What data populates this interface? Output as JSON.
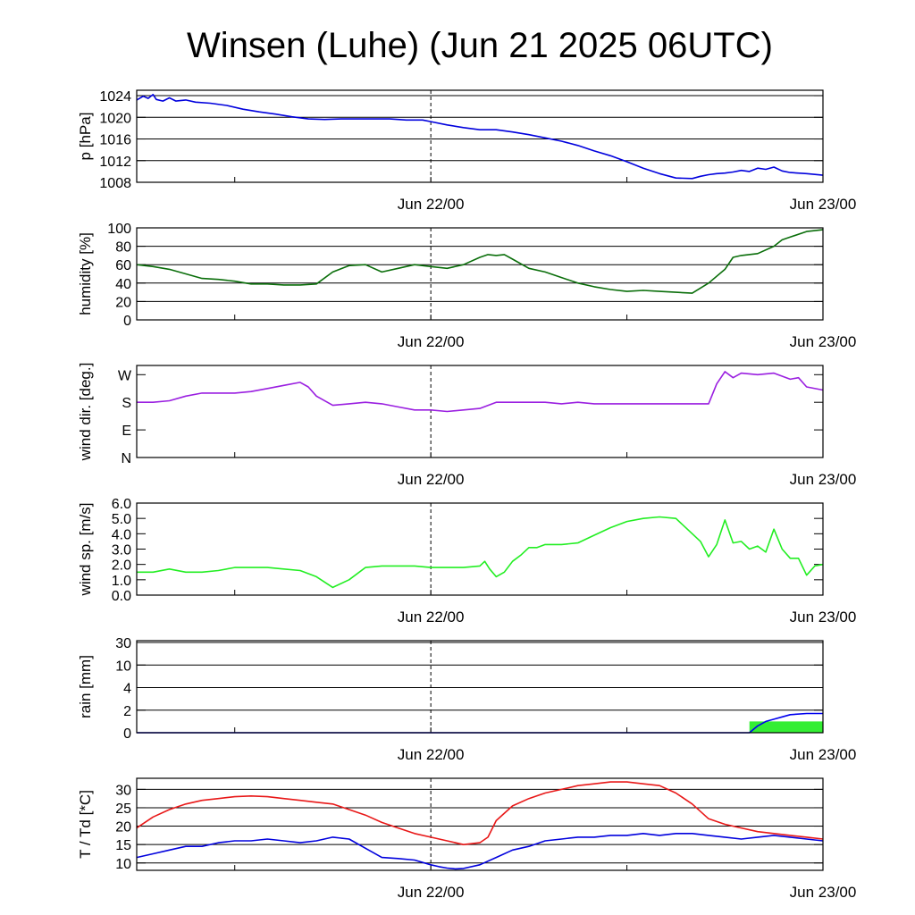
{
  "title": "Winsen (Luhe) (Jun 21 2025 06UTC)",
  "x_axis": {
    "tick_labels": [
      "Jun 22/00",
      "Jun 23/00"
    ],
    "hours_start": 0,
    "hours_end": 42
  },
  "colors": {
    "frame": "#000000",
    "grid": "#000000",
    "pressure": "#0000dd",
    "humidity": "#0a6e0a",
    "wind_dir": "#9a1fe0",
    "wind_speed": "#22ee22",
    "rain_bar": "#33ee33",
    "rain_cum": "#0000ee",
    "temperature": "#e81818",
    "dewpoint": "#0000dd"
  },
  "chart_data": [
    {
      "type": "line",
      "ylabel": "p [hPa]",
      "ylim": [
        1008,
        1025
      ],
      "yticks": [
        1008,
        1012,
        1016,
        1020,
        1024
      ],
      "ytick_labels": [
        "1008",
        "1012",
        "1016",
        "1020",
        "1024"
      ],
      "grid": true,
      "series": [
        {
          "x": [
            0,
            0.4,
            0.7,
            1.0,
            1.2,
            1.6,
            2.0,
            2.4,
            3.0,
            3.6,
            4.5,
            5.5,
            6.5,
            7.5,
            8.5,
            9.5,
            10.5,
            11.5,
            12.5,
            13.5,
            14.5,
            15.5,
            16.5,
            17.5,
            18,
            19,
            20,
            21,
            22,
            23,
            24,
            25,
            26,
            27,
            28,
            29,
            30,
            31,
            32,
            33,
            34,
            34.5,
            35,
            35.5,
            36,
            36.5,
            37,
            37.5,
            38,
            38.5,
            39,
            39.5,
            40,
            41,
            42
          ],
          "y": [
            1023.2,
            1023.9,
            1023.5,
            1024.2,
            1023.3,
            1023.0,
            1023.6,
            1023.0,
            1023.2,
            1022.8,
            1022.6,
            1022.2,
            1021.5,
            1021.0,
            1020.6,
            1020.1,
            1019.7,
            1019.6,
            1019.7,
            1019.7,
            1019.7,
            1019.7,
            1019.5,
            1019.5,
            1019.2,
            1018.6,
            1018.1,
            1017.7,
            1017.7,
            1017.3,
            1016.8,
            1016.2,
            1015.6,
            1014.8,
            1013.8,
            1012.9,
            1011.8,
            1010.6,
            1009.6,
            1008.8,
            1008.7,
            1009.1,
            1009.4,
            1009.6,
            1009.7,
            1009.9,
            1010.2,
            1010.0,
            1010.6,
            1010.4,
            1010.8,
            1010.1,
            1009.8,
            1009.6,
            1009.3
          ],
          "color_key": "pressure"
        }
      ]
    },
    {
      "type": "line",
      "ylabel": "humidity [%]",
      "ylim": [
        0,
        100
      ],
      "yticks": [
        0,
        20,
        40,
        60,
        80,
        100
      ],
      "ytick_labels": [
        "0",
        "20",
        "40",
        "60",
        "80",
        "100"
      ],
      "grid": true,
      "series": [
        {
          "x": [
            0,
            1,
            2,
            3,
            4,
            5,
            6,
            7,
            8,
            9,
            10,
            11,
            12,
            13,
            14,
            15,
            16,
            17,
            18,
            19,
            20,
            21,
            21.5,
            22,
            22.5,
            23,
            24,
            25,
            26,
            27,
            28,
            29,
            30,
            31,
            32,
            33,
            34,
            35,
            36,
            36.5,
            37,
            38,
            39,
            39.5,
            40,
            41,
            42
          ],
          "y": [
            60,
            58,
            55,
            50,
            45,
            44,
            42,
            39,
            39,
            38,
            38,
            39,
            52,
            59,
            60,
            52,
            56,
            60,
            58,
            56,
            60,
            68,
            71,
            70,
            71,
            66,
            56,
            52,
            46,
            40,
            36,
            33,
            31,
            32,
            31,
            30,
            29,
            40,
            55,
            68,
            70,
            72,
            80,
            87,
            90,
            96,
            98
          ],
          "color_key": "humidity"
        }
      ]
    },
    {
      "type": "line",
      "ylabel": "wind dir. [deg.]",
      "ylim": [
        0,
        300
      ],
      "yticks": [
        0,
        90,
        180,
        270
      ],
      "ytick_labels": [
        "N",
        "E",
        "S",
        "W"
      ],
      "grid": false,
      "series": [
        {
          "x": [
            0,
            1,
            2,
            3,
            4,
            5,
            6,
            7,
            8,
            9,
            10,
            10.5,
            11,
            12,
            13,
            14,
            15,
            16,
            17,
            18,
            19,
            20,
            21,
            22,
            23,
            24,
            25,
            26,
            27,
            28,
            29,
            30,
            31,
            32,
            33,
            34,
            35,
            35.5,
            36,
            36.5,
            37,
            38,
            39,
            40,
            40.5,
            41,
            42
          ],
          "y": [
            180,
            180,
            185,
            200,
            210,
            210,
            210,
            215,
            225,
            235,
            245,
            230,
            200,
            170,
            175,
            180,
            175,
            165,
            155,
            155,
            150,
            155,
            160,
            180,
            180,
            180,
            180,
            175,
            180,
            175,
            175,
            175,
            175,
            175,
            175,
            175,
            175,
            240,
            280,
            260,
            275,
            270,
            275,
            255,
            260,
            230,
            220
          ],
          "color_key": "wind_dir"
        }
      ]
    },
    {
      "type": "line",
      "ylabel": "wind sp. [m/s]",
      "ylim": [
        0,
        6
      ],
      "yticks": [
        0,
        1,
        2,
        3,
        4,
        5,
        6
      ],
      "ytick_labels": [
        "0.0",
        "1.0",
        "2.0",
        "3.0",
        "4.0",
        "5.0",
        "6.0"
      ],
      "grid": false,
      "series": [
        {
          "x": [
            0,
            1,
            2,
            3,
            4,
            5,
            6,
            7,
            8,
            9,
            10,
            11,
            12,
            13,
            14,
            15,
            16,
            17,
            18,
            19,
            20,
            21,
            21.3,
            21.6,
            22,
            22.5,
            23,
            23.5,
            24,
            24.5,
            25,
            26,
            27,
            28,
            29,
            30,
            31,
            32,
            33,
            34,
            34.5,
            35,
            35.5,
            36,
            36.5,
            37,
            37.5,
            38,
            38.5,
            39,
            39.5,
            40,
            40.5,
            41,
            41.5,
            42
          ],
          "y": [
            1.5,
            1.5,
            1.7,
            1.5,
            1.5,
            1.6,
            1.8,
            1.8,
            1.8,
            1.7,
            1.6,
            1.2,
            0.5,
            1.0,
            1.8,
            1.9,
            1.9,
            1.9,
            1.8,
            1.8,
            1.8,
            1.9,
            2.2,
            1.7,
            1.2,
            1.5,
            2.2,
            2.6,
            3.1,
            3.1,
            3.3,
            3.3,
            3.4,
            3.9,
            4.4,
            4.8,
            5.0,
            5.1,
            5.0,
            4.0,
            3.5,
            2.5,
            3.3,
            4.9,
            3.4,
            3.5,
            3.0,
            3.2,
            2.8,
            4.3,
            3.0,
            2.4,
            2.4,
            1.3,
            1.9,
            2.0
          ],
          "color_key": "wind_speed"
        }
      ]
    },
    {
      "type": "bar",
      "ylabel": "rain [mm]",
      "ylim_levels": [
        0,
        2,
        4,
        10,
        30
      ],
      "yticks": [
        0,
        2,
        4,
        10,
        30
      ],
      "ytick_labels": [
        "0",
        "2",
        "4",
        "10",
        "30"
      ],
      "grid": true,
      "bars": [
        {
          "x_start": 37.5,
          "x_end": 42,
          "value": 1.0,
          "color_key": "rain_bar"
        }
      ],
      "series": [
        {
          "x": [
            0,
            37.5,
            38.0,
            38.5,
            39.0,
            39.5,
            40.0,
            41.0,
            42.0
          ],
          "y": [
            0,
            0,
            0.6,
            1.0,
            1.2,
            1.4,
            1.6,
            1.7,
            1.7
          ],
          "color_key": "rain_cum"
        }
      ]
    },
    {
      "type": "line",
      "ylabel": "T / Td [*C]",
      "ylim": [
        8,
        33
      ],
      "yticks": [
        10,
        15,
        20,
        25,
        30
      ],
      "ytick_labels": [
        "10",
        "15",
        "20",
        "25",
        "30"
      ],
      "grid": true,
      "series": [
        {
          "x": [
            0,
            1,
            2,
            3,
            4,
            5,
            6,
            7,
            8,
            9,
            10,
            11,
            12,
            13,
            14,
            15,
            16,
            17,
            18,
            19,
            20,
            21,
            21.5,
            22,
            23,
            24,
            25,
            26,
            27,
            28,
            29,
            30,
            31,
            32,
            33,
            34,
            35,
            36,
            37,
            38,
            39,
            40,
            41,
            42
          ],
          "y": [
            19.5,
            22.5,
            24.5,
            26,
            27,
            27.5,
            28,
            28.2,
            28,
            27.5,
            27,
            26.5,
            26,
            24.5,
            23,
            21,
            19.5,
            18,
            17,
            16,
            15,
            15.5,
            17,
            21.5,
            25.5,
            27.5,
            29,
            30,
            31,
            31.5,
            32,
            32,
            31.5,
            31,
            29,
            26,
            22,
            20.5,
            19.5,
            18.5,
            18,
            17.5,
            17,
            16.5
          ],
          "color_key": "temperature"
        },
        {
          "x": [
            0,
            1,
            2,
            3,
            4,
            5,
            6,
            7,
            8,
            9,
            10,
            11,
            12,
            13,
            14,
            15,
            16,
            17,
            18,
            18.5,
            19,
            19.5,
            20,
            21,
            22,
            23,
            24,
            25,
            26,
            27,
            28,
            29,
            30,
            31,
            32,
            33,
            34,
            35,
            36,
            37,
            38,
            39,
            40,
            41,
            42
          ],
          "y": [
            11.5,
            12.5,
            13.5,
            14.5,
            14.5,
            15.5,
            16,
            16,
            16.5,
            16,
            15.5,
            16,
            17,
            16.5,
            14,
            11.5,
            11.2,
            10.8,
            9.5,
            9,
            8.6,
            8.4,
            8.5,
            9.5,
            11.5,
            13.5,
            14.5,
            16,
            16.5,
            17,
            17,
            17.5,
            17.5,
            18,
            17.5,
            18,
            18,
            17.5,
            17,
            16.5,
            17,
            17.5,
            17,
            16.5,
            16
          ],
          "color_key": "dewpoint"
        }
      ]
    }
  ]
}
